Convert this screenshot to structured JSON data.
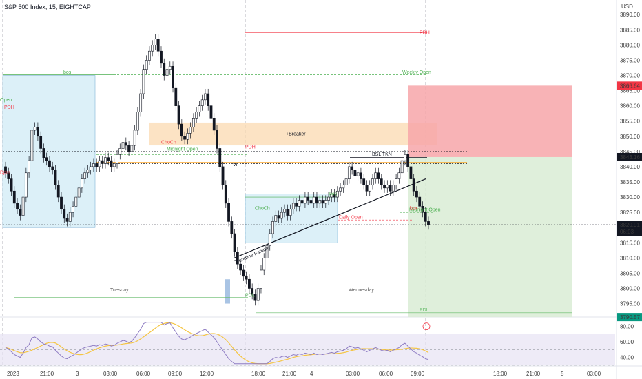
{
  "header": {
    "title": "S&P 500 Index, 15, EIGHTCAP"
  },
  "price_axis": {
    "currency": "USD",
    "ticks": [
      "3890.00",
      "3885.00",
      "3880.00",
      "3875.00",
      "3870.00",
      "3865.00",
      "3860.00",
      "3855.00",
      "3850.00",
      "3845.00",
      "3840.00",
      "3835.00",
      "3830.00",
      "3825.00",
      "3820.00",
      "3815.00",
      "3810.00",
      "3805.00",
      "3800.00",
      "3795.00"
    ],
    "tags": [
      {
        "text": "3866.64",
        "color": "#f23645"
      },
      {
        "text": "3843.16",
        "color": "#131722"
      },
      {
        "text": "3820.91",
        "color": "#131722"
      },
      {
        "text": "06:03",
        "color": "#131722"
      },
      {
        "text": "3790.57",
        "color": "#089981"
      }
    ]
  },
  "rsi_axis": {
    "ticks": [
      "80.00",
      "60.00",
      "40.00"
    ]
  },
  "time_axis": {
    "ticks": [
      "2023",
      "21:00",
      "3",
      "03:00",
      "06:00",
      "09:00",
      "12:00",
      "18:00",
      "21:00",
      "4",
      "03:00",
      "06:00",
      "09:00",
      "18:00",
      "21:00",
      "5",
      "03:00"
    ]
  },
  "annotations": {
    "bos_1": "bos",
    "bos_2": "bos",
    "weekly_open": "Weekly Open",
    "breaker": "+Breaker",
    "choch_1": "ChoCh",
    "choch_2": "ChoCh",
    "midnight_open_1": "Midnight Open",
    "midnight_open_2": "Midnight Open",
    "vi": "VI",
    "bsl_tkn": "BSL TKN",
    "trendline": "Trendline Fantom",
    "daily_open": "Daily Open",
    "tuesday": "Tuesday",
    "wednesday": "Wednesday",
    "pdl_1": "PDL",
    "pdl_2": "PDL",
    "pdh_1": "PDH",
    "pdh_2": "PDH",
    "pdh_3": "PDH",
    "open": "Open",
    "dpm": "Dpm",
    "box": "box"
  },
  "colors": {
    "up": "#ffffff",
    "down": "#131722",
    "blue_zone": "#bfe3f2",
    "orange_zone": "#fbd9b0",
    "stop_zone": "#f7a6a9",
    "target_zone": "#d9ecd5",
    "rsi_band": "#e7e2f4",
    "rsi_line": "#8e7cc3",
    "rsi_ma": "#f5c542"
  },
  "chart_data": {
    "type": "candlestick",
    "title": "S&P 500 Index, 15, EIGHTCAP",
    "xlabel": "",
    "ylabel": "USD",
    "ylim": [
      3791.5,
      3893
    ],
    "price_series_close": [
      3838,
      3836,
      3832,
      3828,
      3826,
      3824,
      3830,
      3838,
      3842,
      3852,
      3853,
      3850,
      3846,
      3843,
      3842,
      3840,
      3839,
      3834,
      3830,
      3826,
      3823,
      3822,
      3825,
      3827,
      3830,
      3833,
      3836,
      3838,
      3839,
      3840,
      3841,
      3840,
      3842,
      3841,
      3843,
      3842,
      3840,
      3841,
      3844,
      3846,
      3848,
      3847,
      3845,
      3847,
      3852,
      3858,
      3864,
      3872,
      3875,
      3878,
      3880,
      3882,
      3878,
      3874,
      3870,
      3872,
      3873,
      3866,
      3860,
      3854,
      3850,
      3849,
      3851,
      3853,
      3856,
      3858,
      3860,
      3862,
      3864,
      3860,
      3856,
      3852,
      3846,
      3840,
      3834,
      3828,
      3822,
      3818,
      3812,
      3808,
      3806,
      3804,
      3803,
      3800,
      3798,
      3796,
      3800,
      3806,
      3810,
      3814,
      3818,
      3822,
      3824,
      3823,
      3825,
      3826,
      3824,
      3826,
      3828,
      3827,
      3829,
      3828,
      3830,
      3829,
      3828,
      3830,
      3828,
      3829,
      3828,
      3829,
      3830,
      3831,
      3830,
      3832,
      3833,
      3834,
      3836,
      3840,
      3839,
      3837,
      3838,
      3836,
      3834,
      3832,
      3834,
      3836,
      3838,
      3836,
      3834,
      3833,
      3834,
      3832,
      3834,
      3836,
      3838,
      3842,
      3844,
      3840,
      3836,
      3832,
      3830,
      3827,
      3825,
      3822,
      3820.91
    ],
    "annotated_levels": {
      "weekly_open": 3870.2,
      "breaker_zone": [
        3847,
        3854.5
      ],
      "bsl_tkn": 3843,
      "vi_level": 3841.3,
      "midnight_open": 3844.6,
      "stop_zone": [
        3843.16,
        3866.64
      ],
      "target_zone": [
        3790.57,
        3843.16
      ],
      "last_price": 3820.91,
      "pdl": 3790.57
    },
    "rsi": {
      "ylim": [
        30,
        90
      ],
      "band": [
        30,
        70
      ],
      "ticks": [
        80,
        60,
        40
      ]
    },
    "grid": false,
    "legend": "none"
  }
}
